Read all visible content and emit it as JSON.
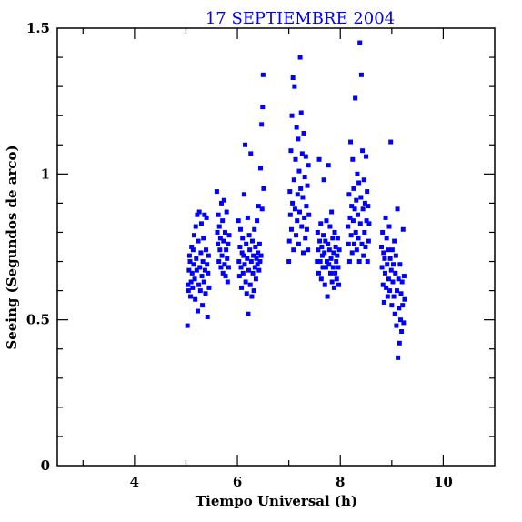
{
  "chart_data": {
    "type": "scatter",
    "title": "17 SEPTIEMBRE 2004",
    "xlabel": "Tiempo Universal (h)",
    "ylabel": "Seeing (Segundos de arco)",
    "xlim": [
      2.5,
      11
    ],
    "ylim": [
      0,
      1.5
    ],
    "x_ticks": [
      4,
      6,
      8,
      10
    ],
    "x_tick_labels": [
      "4",
      "6",
      "8",
      "10"
    ],
    "y_ticks": [
      0,
      0.5,
      1,
      1.5
    ],
    "y_tick_labels": [
      "0",
      "0.5",
      "1",
      "1.5"
    ],
    "grid": false,
    "marker_color": "#0000ff",
    "points": [
      [
        5.03,
        0.48
      ],
      [
        5.04,
        0.62
      ],
      [
        5.05,
        0.6
      ],
      [
        5.06,
        0.67
      ],
      [
        5.07,
        0.72
      ],
      [
        5.08,
        0.7
      ],
      [
        5.09,
        0.58
      ],
      [
        5.1,
        0.63
      ],
      [
        5.11,
        0.75
      ],
      [
        5.12,
        0.66
      ],
      [
        5.13,
        0.61
      ],
      [
        5.14,
        0.74
      ],
      [
        5.15,
        0.69
      ],
      [
        5.16,
        0.79
      ],
      [
        5.17,
        0.64
      ],
      [
        5.18,
        0.57
      ],
      [
        5.19,
        0.82
      ],
      [
        5.2,
        0.71
      ],
      [
        5.21,
        0.67
      ],
      [
        5.22,
        0.86
      ],
      [
        5.23,
        0.53
      ],
      [
        5.24,
        0.77
      ],
      [
        5.25,
        0.62
      ],
      [
        5.26,
        0.87
      ],
      [
        5.27,
        0.68
      ],
      [
        5.28,
        0.6
      ],
      [
        5.29,
        0.73
      ],
      [
        5.3,
        0.83
      ],
      [
        5.31,
        0.65
      ],
      [
        5.32,
        0.55
      ],
      [
        5.33,
        0.7
      ],
      [
        5.34,
        0.78
      ],
      [
        5.35,
        0.63
      ],
      [
        5.36,
        0.86
      ],
      [
        5.37,
        0.67
      ],
      [
        5.38,
        0.59
      ],
      [
        5.39,
        0.74
      ],
      [
        5.4,
        0.85
      ],
      [
        5.41,
        0.69
      ],
      [
        5.42,
        0.51
      ],
      [
        5.43,
        0.66
      ],
      [
        5.44,
        0.72
      ],
      [
        5.45,
        0.61
      ],
      [
        5.6,
        0.94
      ],
      [
        5.61,
        0.8
      ],
      [
        5.62,
        0.76
      ],
      [
        5.63,
        0.86
      ],
      [
        5.64,
        0.7
      ],
      [
        5.65,
        0.82
      ],
      [
        5.66,
        0.74
      ],
      [
        5.67,
        0.78
      ],
      [
        5.68,
        0.68
      ],
      [
        5.69,
        0.9
      ],
      [
        5.7,
        0.72
      ],
      [
        5.71,
        0.84
      ],
      [
        5.72,
        0.66
      ],
      [
        5.73,
        0.77
      ],
      [
        5.74,
        0.91
      ],
      [
        5.75,
        0.69
      ],
      [
        5.76,
        0.8
      ],
      [
        5.77,
        0.65
      ],
      [
        5.78,
        0.74
      ],
      [
        5.79,
        0.87
      ],
      [
        5.8,
        0.71
      ],
      [
        5.81,
        0.63
      ],
      [
        5.82,
        0.76
      ],
      [
        5.83,
        0.68
      ],
      [
        5.84,
        0.79
      ],
      [
        6.02,
        0.84
      ],
      [
        6.03,
        0.7
      ],
      [
        6.04,
        0.65
      ],
      [
        6.05,
        0.75
      ],
      [
        6.06,
        0.81
      ],
      [
        6.07,
        0.68
      ],
      [
        6.08,
        0.61
      ],
      [
        6.09,
        0.73
      ],
      [
        6.1,
        0.78
      ],
      [
        6.11,
        0.66
      ],
      [
        6.12,
        0.72
      ],
      [
        6.13,
        0.93
      ],
      [
        6.14,
        0.69
      ],
      [
        6.15,
        1.1
      ],
      [
        6.16,
        0.63
      ],
      [
        6.17,
        0.76
      ],
      [
        6.18,
        0.59
      ],
      [
        6.19,
        0.71
      ],
      [
        6.2,
        0.85
      ],
      [
        6.21,
        0.52
      ],
      [
        6.22,
        0.67
      ],
      [
        6.23,
        0.79
      ],
      [
        6.24,
        0.74
      ],
      [
        6.25,
        0.62
      ],
      [
        6.26,
        1.07
      ],
      [
        6.27,
        0.7
      ],
      [
        6.28,
        0.58
      ],
      [
        6.29,
        0.77
      ],
      [
        6.3,
        0.66
      ],
      [
        6.31,
        0.72
      ],
      [
        6.32,
        0.6
      ],
      [
        6.33,
        0.81
      ],
      [
        6.34,
        0.68
      ],
      [
        6.35,
        0.75
      ],
      [
        6.36,
        0.64
      ],
      [
        6.37,
        0.71
      ],
      [
        6.38,
        0.84
      ],
      [
        6.39,
        0.69
      ],
      [
        6.4,
        0.73
      ],
      [
        6.41,
        0.89
      ],
      [
        6.42,
        0.67
      ],
      [
        6.43,
        0.76
      ],
      [
        6.44,
        0.7
      ],
      [
        6.45,
        1.02
      ],
      [
        6.46,
        0.72
      ],
      [
        6.47,
        1.17
      ],
      [
        6.48,
        0.88
      ],
      [
        6.49,
        1.23
      ],
      [
        6.5,
        1.34
      ],
      [
        6.51,
        0.95
      ],
      [
        7.0,
        0.7
      ],
      [
        7.01,
        0.77
      ],
      [
        7.02,
        0.94
      ],
      [
        7.03,
        0.86
      ],
      [
        7.04,
        1.08
      ],
      [
        7.05,
        0.81
      ],
      [
        7.06,
        1.2
      ],
      [
        7.07,
        0.9
      ],
      [
        7.08,
        1.33
      ],
      [
        7.09,
        0.74
      ],
      [
        7.1,
        0.98
      ],
      [
        7.11,
        1.3
      ],
      [
        7.12,
        0.88
      ],
      [
        7.13,
        1.05
      ],
      [
        7.14,
        0.79
      ],
      [
        7.15,
        1.16
      ],
      [
        7.16,
        0.84
      ],
      [
        7.17,
        0.93
      ],
      [
        7.18,
        1.12
      ],
      [
        7.19,
        0.76
      ],
      [
        7.2,
        1.01
      ],
      [
        7.21,
        0.87
      ],
      [
        7.22,
        1.4
      ],
      [
        7.23,
        0.95
      ],
      [
        7.24,
        1.21
      ],
      [
        7.25,
        0.82
      ],
      [
        7.26,
        1.07
      ],
      [
        7.27,
        0.92
      ],
      [
        7.28,
        0.73
      ],
      [
        7.29,
        1.14
      ],
      [
        7.3,
        0.85
      ],
      [
        7.31,
        0.99
      ],
      [
        7.32,
        0.78
      ],
      [
        7.33,
        1.06
      ],
      [
        7.34,
        0.89
      ],
      [
        7.35,
        0.81
      ],
      [
        7.36,
        0.96
      ],
      [
        7.37,
        0.74
      ],
      [
        7.38,
        1.03
      ],
      [
        7.39,
        0.86
      ],
      [
        7.55,
        0.7
      ],
      [
        7.56,
        0.8
      ],
      [
        7.57,
        0.74
      ],
      [
        7.58,
        0.66
      ],
      [
        7.59,
        1.05
      ],
      [
        7.6,
        0.77
      ],
      [
        7.61,
        0.7
      ],
      [
        7.62,
        0.83
      ],
      [
        7.63,
        0.64
      ],
      [
        7.64,
        0.75
      ],
      [
        7.65,
        0.72
      ],
      [
        7.66,
        0.68
      ],
      [
        7.67,
        0.79
      ],
      [
        7.68,
        0.98
      ],
      [
        7.69,
        0.73
      ],
      [
        7.7,
        0.62
      ],
      [
        7.71,
        0.77
      ],
      [
        7.72,
        0.68
      ],
      [
        7.73,
        0.84
      ],
      [
        7.74,
        0.7
      ],
      [
        7.75,
        0.58
      ],
      [
        7.76,
        0.76
      ],
      [
        7.77,
        1.03
      ],
      [
        7.78,
        0.69
      ],
      [
        7.79,
        0.74
      ],
      [
        7.8,
        0.82
      ],
      [
        7.81,
        0.66
      ],
      [
        7.82,
        0.71
      ],
      [
        7.83,
        0.87
      ],
      [
        7.84,
        0.63
      ],
      [
        7.85,
        0.78
      ],
      [
        7.86,
        0.68
      ],
      [
        7.87,
        0.73
      ],
      [
        7.88,
        0.61
      ],
      [
        7.89,
        0.8
      ],
      [
        7.9,
        0.66
      ],
      [
        7.91,
        0.75
      ],
      [
        7.92,
        0.7
      ],
      [
        7.93,
        0.64
      ],
      [
        7.94,
        0.72
      ],
      [
        7.95,
        0.78
      ],
      [
        7.96,
        0.68
      ],
      [
        7.97,
        0.62
      ],
      [
        7.98,
        0.74
      ],
      [
        8.15,
        0.82
      ],
      [
        8.16,
        0.76
      ],
      [
        8.17,
        0.93
      ],
      [
        8.18,
        0.7
      ],
      [
        8.19,
        0.85
      ],
      [
        8.2,
        1.11
      ],
      [
        8.21,
        0.79
      ],
      [
        8.22,
        0.89
      ],
      [
        8.23,
        0.73
      ],
      [
        8.24,
        1.05
      ],
      [
        8.25,
        0.84
      ],
      [
        8.26,
        0.95
      ],
      [
        8.27,
        0.76
      ],
      [
        8.28,
        0.88
      ],
      [
        8.29,
        1.26
      ],
      [
        8.3,
        0.8
      ],
      [
        8.31,
        0.91
      ],
      [
        8.32,
        0.74
      ],
      [
        8.33,
        1.0
      ],
      [
        8.34,
        0.86
      ],
      [
        8.35,
        0.78
      ],
      [
        8.36,
        0.97
      ],
      [
        8.37,
        0.7
      ],
      [
        8.38,
        1.45
      ],
      [
        8.39,
        0.83
      ],
      [
        8.4,
        0.92
      ],
      [
        8.41,
        1.34
      ],
      [
        8.42,
        0.76
      ],
      [
        8.43,
        1.08
      ],
      [
        8.44,
        0.88
      ],
      [
        8.45,
        0.72
      ],
      [
        8.46,
        0.98
      ],
      [
        8.47,
        0.8
      ],
      [
        8.48,
        0.9
      ],
      [
        8.49,
        0.75
      ],
      [
        8.5,
        1.06
      ],
      [
        8.51,
        0.84
      ],
      [
        8.52,
        0.94
      ],
      [
        8.53,
        0.7
      ],
      [
        8.54,
        0.89
      ],
      [
        8.55,
        0.77
      ],
      [
        8.56,
        0.83
      ],
      [
        8.8,
        0.75
      ],
      [
        8.81,
        0.68
      ],
      [
        8.82,
        0.8
      ],
      [
        8.83,
        0.62
      ],
      [
        8.84,
        0.73
      ],
      [
        8.85,
        0.56
      ],
      [
        8.86,
        0.71
      ],
      [
        8.87,
        0.66
      ],
      [
        8.88,
        0.85
      ],
      [
        8.89,
        0.61
      ],
      [
        8.9,
        0.78
      ],
      [
        8.91,
        0.69
      ],
      [
        8.92,
        0.58
      ],
      [
        8.93,
        0.74
      ],
      [
        8.94,
        0.64
      ],
      [
        8.95,
        0.82
      ],
      [
        8.96,
        0.6
      ],
      [
        8.97,
        0.71
      ],
      [
        8.98,
        1.11
      ],
      [
        8.99,
        0.67
      ],
      [
        9.0,
        0.55
      ],
      [
        9.01,
        0.74
      ],
      [
        9.02,
        0.63
      ],
      [
        9.03,
        0.69
      ],
      [
        9.04,
        0.58
      ],
      [
        9.05,
        0.77
      ],
      [
        9.06,
        0.52
      ],
      [
        9.07,
        0.66
      ],
      [
        9.08,
        0.72
      ],
      [
        9.09,
        0.48
      ],
      [
        9.1,
        0.6
      ],
      [
        9.11,
        0.88
      ],
      [
        9.12,
        0.37
      ],
      [
        9.13,
        0.64
      ],
      [
        9.14,
        0.54
      ],
      [
        9.15,
        0.42
      ],
      [
        9.16,
        0.69
      ],
      [
        9.17,
        0.5
      ],
      [
        9.18,
        0.59
      ],
      [
        9.19,
        0.46
      ],
      [
        9.2,
        0.63
      ],
      [
        9.21,
        0.55
      ],
      [
        9.22,
        0.81
      ],
      [
        9.23,
        0.49
      ],
      [
        9.24,
        0.65
      ],
      [
        9.25,
        0.57
      ]
    ]
  }
}
